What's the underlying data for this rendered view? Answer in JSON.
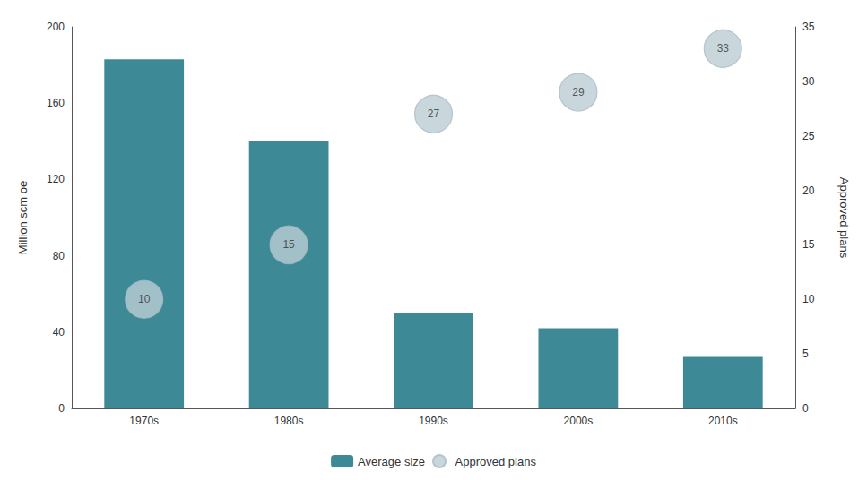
{
  "chart_data": {
    "type": "bar",
    "categories": [
      "1970s",
      "1980s",
      "1990s",
      "2000s",
      "2010s"
    ],
    "series": [
      {
        "name": "Average size",
        "type": "bar",
        "color": "#3d8a96",
        "values": [
          183,
          140,
          50,
          42,
          27
        ]
      },
      {
        "name": "Approved plans",
        "type": "scatter",
        "marker": "circle",
        "color": "#bccdd4",
        "axis": "y2",
        "values": [
          10,
          15,
          27,
          29,
          33
        ],
        "data_labels": true
      }
    ],
    "ylabel": "Million scm oe",
    "y2label": "Approved plans",
    "ylim": [
      0,
      200
    ],
    "yticks": [
      0,
      40,
      80,
      120,
      160,
      200
    ],
    "y2lim": [
      0,
      35
    ],
    "y2ticks": [
      0,
      5,
      10,
      15,
      20,
      25,
      30,
      35
    ],
    "grid": false,
    "legend": "bottom"
  }
}
